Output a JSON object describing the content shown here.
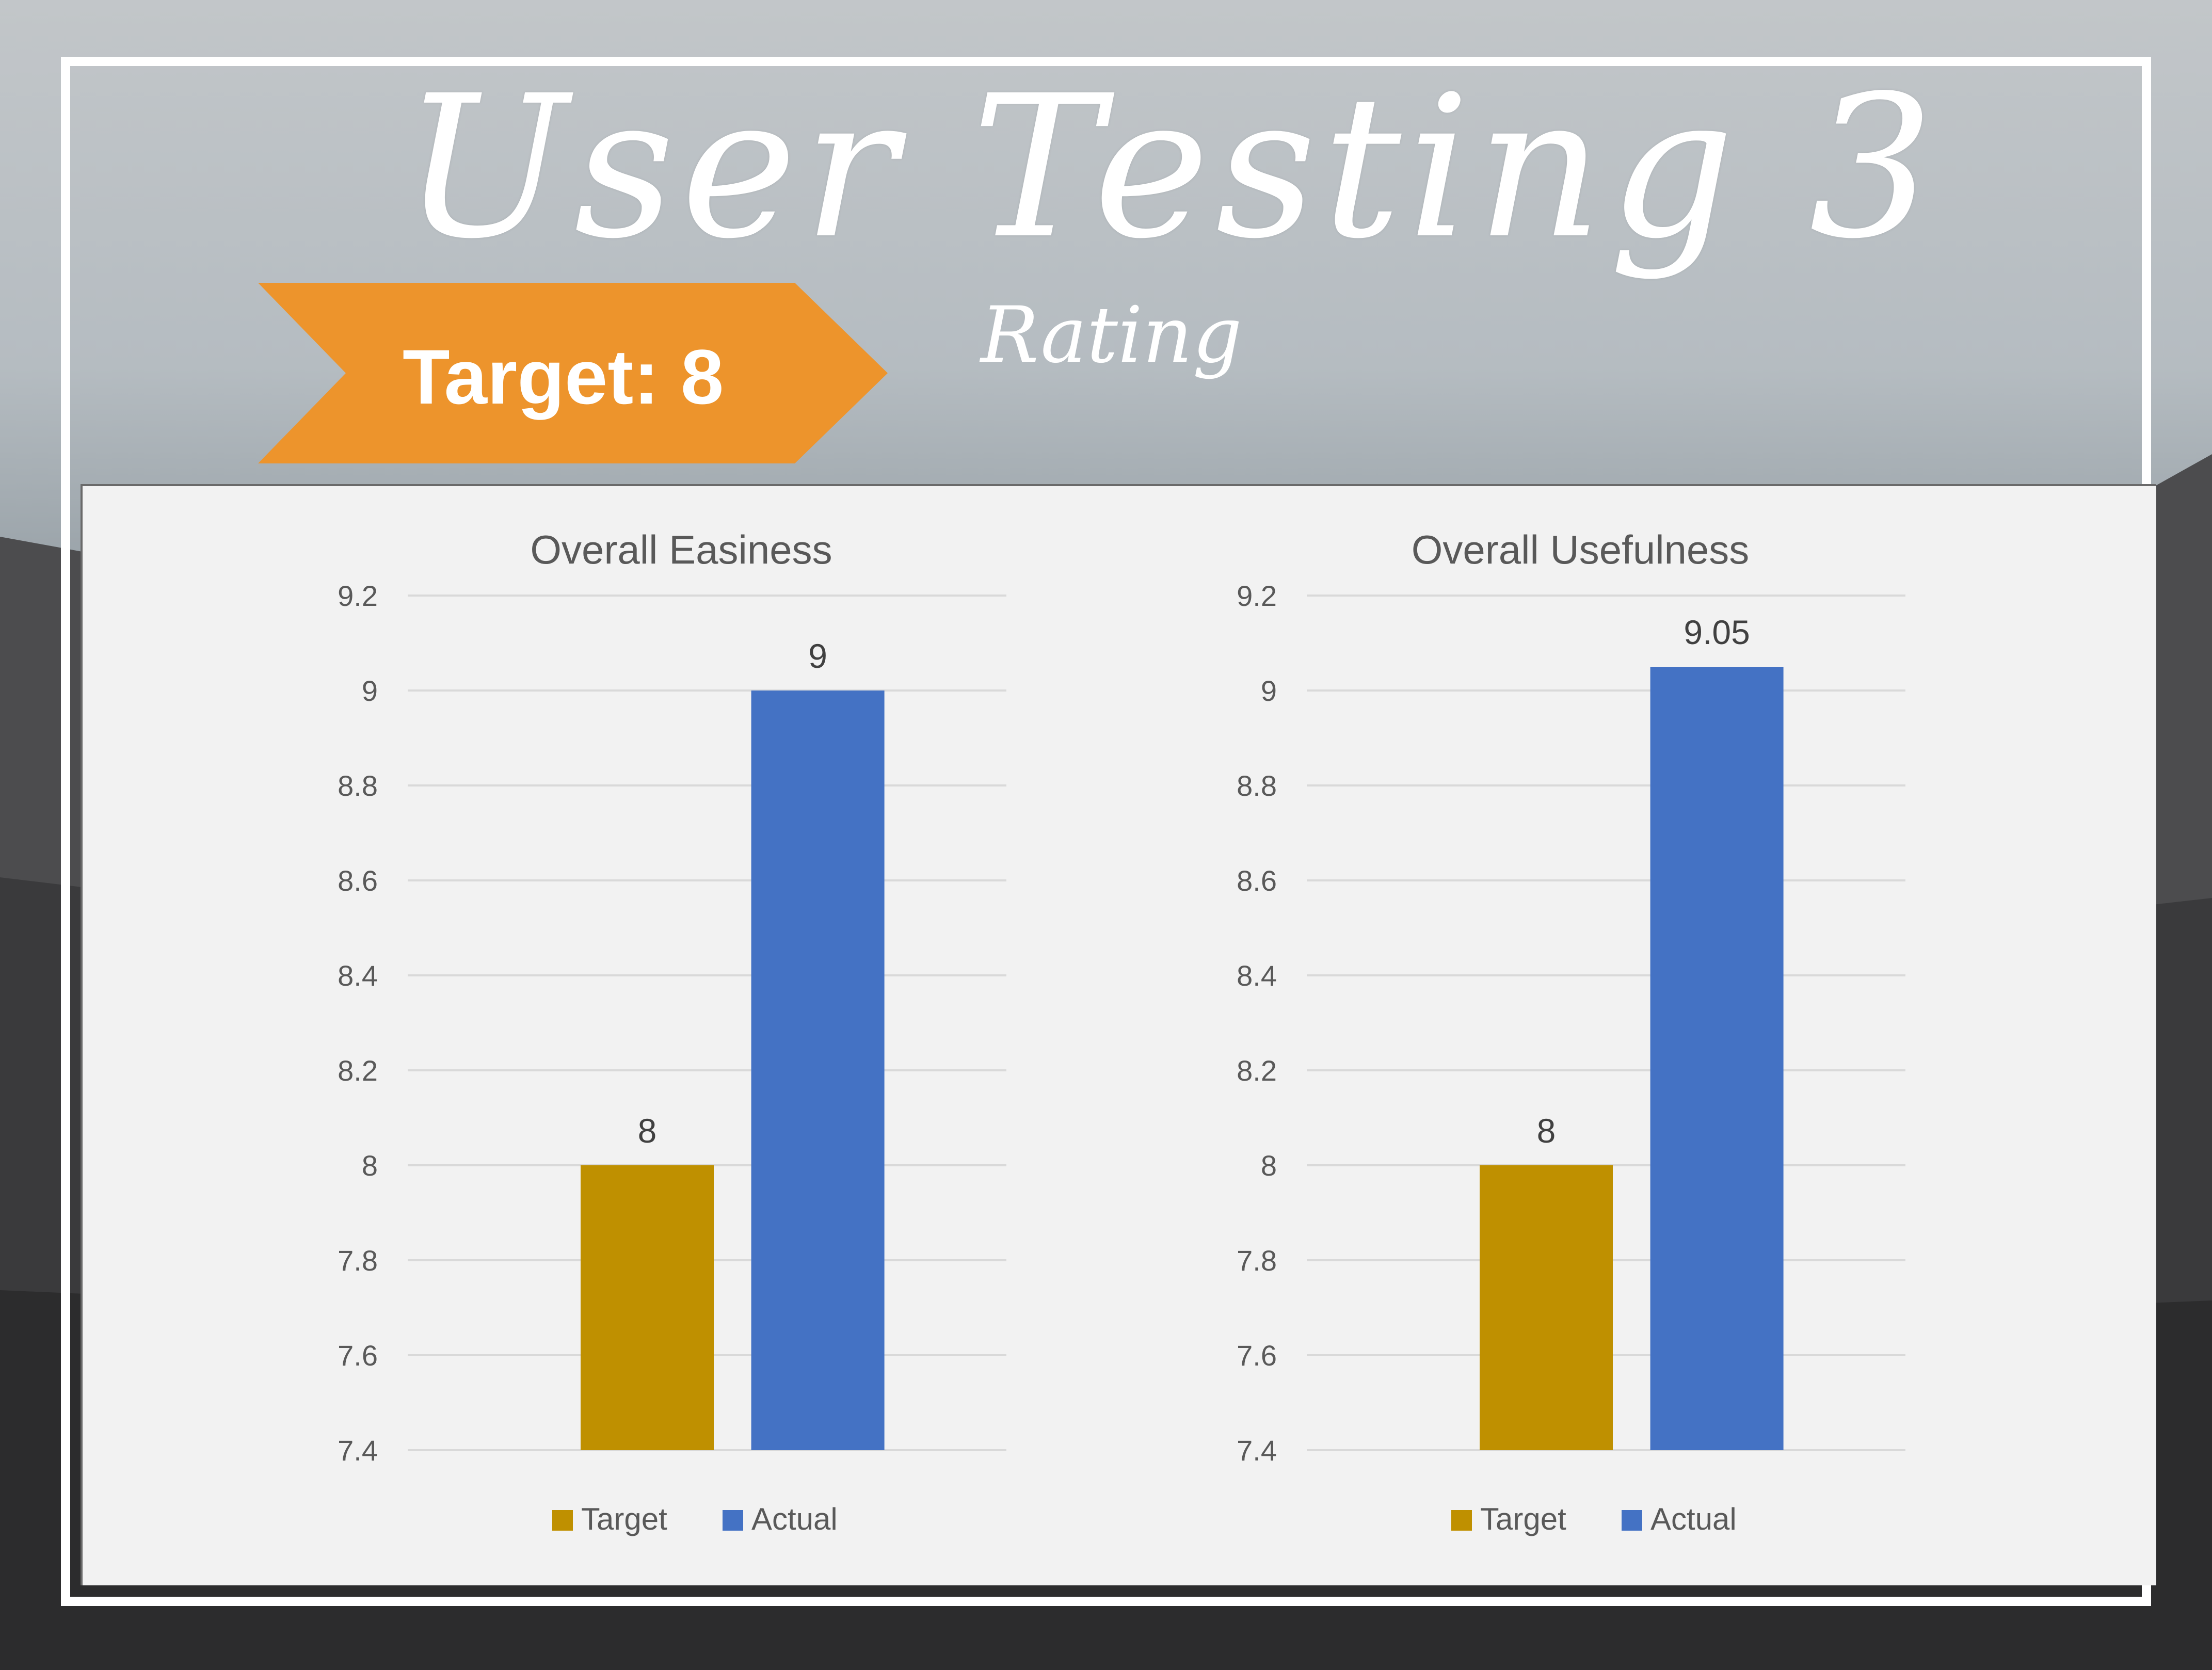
{
  "header": {
    "title": "User Testing 3",
    "subtitle": "Rating",
    "banner_label": "Target: 8"
  },
  "colors": {
    "target": "#bf9000",
    "actual": "#4472c4",
    "banner": "#ed942c",
    "grid": "#d9d9d9",
    "text": "#404040",
    "tick": "#595959"
  },
  "chart_data": [
    {
      "type": "bar",
      "title": "Overall Easiness",
      "categories": [
        "Target",
        "Actual"
      ],
      "values": [
        8,
        9
      ],
      "data_labels": [
        "8",
        "9"
      ],
      "ylim": [
        7.4,
        9.2
      ],
      "yticks": [
        9.2,
        9,
        8.8,
        8.6,
        8.4,
        8.2,
        8,
        7.8,
        7.6,
        7.4
      ],
      "ytick_labels": [
        "9.2",
        "9",
        "8.8",
        "8.6",
        "8.4",
        "8.2",
        "8",
        "7.8",
        "7.6",
        "7.4"
      ],
      "grid": true,
      "legend": [
        "Target",
        "Actual"
      ],
      "legend_position": "bottom"
    },
    {
      "type": "bar",
      "title": "Overall Usefulness",
      "categories": [
        "Target",
        "Actual"
      ],
      "values": [
        8,
        9.05
      ],
      "data_labels": [
        "8",
        "9.05"
      ],
      "ylim": [
        7.4,
        9.2
      ],
      "yticks": [
        9.2,
        9,
        8.8,
        8.6,
        8.4,
        8.2,
        8,
        7.8,
        7.6,
        7.4
      ],
      "ytick_labels": [
        "9.2",
        "9",
        "8.8",
        "8.6",
        "8.4",
        "8.2",
        "8",
        "7.8",
        "7.6",
        "7.4"
      ],
      "grid": true,
      "legend": [
        "Target",
        "Actual"
      ],
      "legend_position": "bottom"
    }
  ]
}
